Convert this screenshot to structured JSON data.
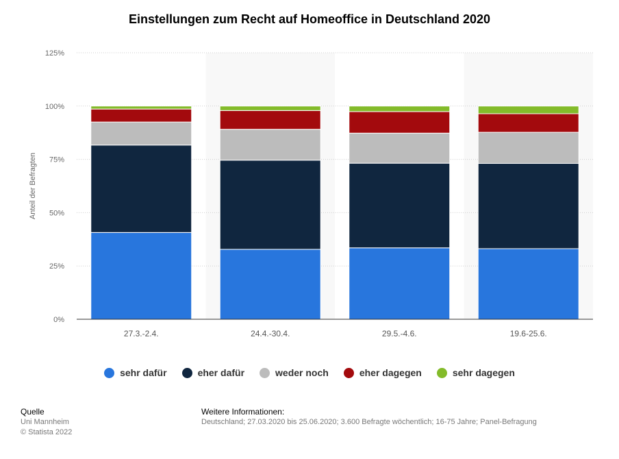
{
  "title": "Einstellungen zum Recht auf Homeoffice in Deutschland 2020",
  "chart_data": {
    "type": "bar",
    "stacked": true,
    "title": "Einstellungen zum Recht auf Homeoffice in Deutschland 2020",
    "xlabel": "",
    "ylabel": "Anteil der Befragten",
    "ylim": [
      0,
      125
    ],
    "yticks": [
      "0%",
      "25%",
      "50%",
      "75%",
      "100%",
      "125%"
    ],
    "ytick_values": [
      0,
      25,
      50,
      75,
      100,
      125
    ],
    "categories": [
      "27.3.-2.4.",
      "24.4.-30.4.",
      "29.5.-4.6.",
      "19.6-25.6."
    ],
    "series": [
      {
        "name": "sehr dafür",
        "color": "#2876dd",
        "values": [
          40.7,
          32.8,
          33.5,
          33.1
        ]
      },
      {
        "name": "eher dafür",
        "color": "#10263f",
        "values": [
          41,
          41.8,
          39.7,
          40
        ]
      },
      {
        "name": "weder noch",
        "color": "#bcbcbc",
        "values": [
          10.8,
          14.5,
          14.1,
          14.6
        ]
      },
      {
        "name": "eher dagegen",
        "color": "#a30a0d",
        "values": [
          6.1,
          8.8,
          10.1,
          8.7
        ]
      },
      {
        "name": "sehr dagegen",
        "color": "#83bb2a",
        "values": [
          1.4,
          2.1,
          2.6,
          3.6
        ]
      }
    ],
    "grid": true,
    "legend": "bottom"
  },
  "footer": {
    "source_heading": "Quelle",
    "source": "Uni Mannheim",
    "copyright": "© Statista 2022",
    "info_heading": "Weitere Informationen:",
    "info": "Deutschland; 27.03.2020 bis 25.06.2020; 3.600 Befragte wöchentlich; 16-75 Jahre; Panel-Befragung"
  }
}
